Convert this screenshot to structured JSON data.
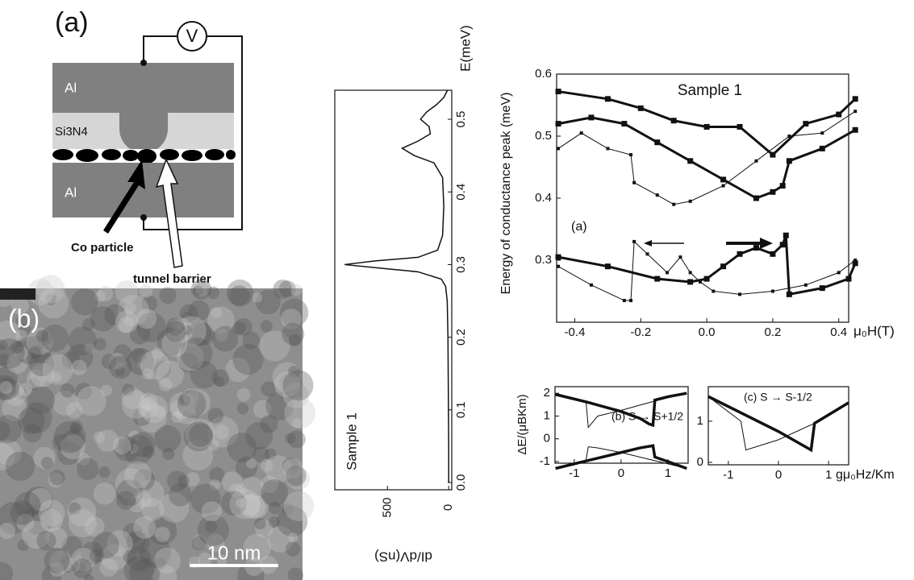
{
  "panel_a": {
    "label": "(a)",
    "voltmeter": "V",
    "top_layer": "Al",
    "insulator": "Si3N4",
    "bottom_layer": "Al",
    "particle_label": "Co particle",
    "barrier_label": "tunnel barrier"
  },
  "panel_b": {
    "label": "(b)",
    "scale_bar": "10 nm"
  },
  "chart_data": [
    {
      "type": "line",
      "orientation": "rotated",
      "title": "Sample 1",
      "xlabel": "E(meV)",
      "ylabel": "dI/dV(nS)",
      "x": [
        0,
        0.05,
        0.1,
        0.15,
        0.2,
        0.25,
        0.27,
        0.28,
        0.29,
        0.295,
        0.3,
        0.305,
        0.31,
        0.32,
        0.34,
        0.38,
        0.42,
        0.44,
        0.45,
        0.46,
        0.47,
        0.48,
        0.49,
        0.5,
        0.51,
        0.52,
        0.53,
        0.54
      ],
      "series": [
        {
          "name": "Sample 1",
          "color": "#111111",
          "line_width": 1.5,
          "values": [
            0,
            0,
            2,
            4,
            6,
            12,
            25,
            60,
            250,
            550,
            850,
            600,
            250,
            90,
            50,
            40,
            50,
            120,
            280,
            380,
            250,
            150,
            160,
            230,
            180,
            100,
            40,
            10
          ]
        }
      ],
      "xlim": [
        -0.01,
        0.54
      ],
      "xticks": [
        {
          "value": 0,
          "label": "0.0"
        },
        0.1,
        0.2,
        0.3,
        0.4,
        0.5
      ],
      "ylim": [
        930,
        -25
      ],
      "yticks": [
        500,
        0
      ]
    },
    {
      "type": "line",
      "title": "Sample 1",
      "annotation": "(a)",
      "xlabel": "μ₀H(T)",
      "ylabel": "Energy of conductance peak (meV)",
      "series": [
        {
          "color": "#111111",
          "line_width": 3,
          "marker": true,
          "x": [
            -0.45,
            -0.3,
            -0.2,
            -0.1,
            0,
            0.1,
            0.2,
            0.3,
            0.4,
            0.45
          ],
          "values": [
            0.572,
            0.56,
            0.545,
            0.525,
            0.515,
            0.515,
            0.47,
            0.52,
            0.535,
            0.56
          ]
        },
        {
          "color": "#111111",
          "line_width": 3,
          "marker": true,
          "x": [
            -0.45,
            -0.35,
            -0.25,
            -0.15,
            -0.05,
            0.05,
            0.15,
            0.2,
            0.23,
            0.25,
            0.35,
            0.45
          ],
          "values": [
            0.52,
            0.53,
            0.52,
            0.49,
            0.46,
            0.43,
            0.4,
            0.41,
            0.42,
            0.46,
            0.48,
            0.51
          ]
        },
        {
          "color": "#111111",
          "line_width": 1,
          "marker": true,
          "x": [
            -0.45,
            -0.38,
            -0.3,
            -0.23,
            -0.22,
            -0.15,
            -0.1,
            -0.05,
            0.05,
            0.15,
            0.25,
            0.35,
            0.45
          ],
          "values": [
            0.48,
            0.505,
            0.48,
            0.47,
            0.425,
            0.405,
            0.39,
            0.395,
            0.42,
            0.46,
            0.5,
            0.505,
            0.54
          ]
        },
        {
          "color": "#111111",
          "line_width": 3,
          "marker": true,
          "x": [
            -0.45,
            -0.3,
            -0.15,
            -0.05,
            0,
            0.05,
            0.1,
            0.15,
            0.2,
            0.23,
            0.24,
            0.25,
            0.35,
            0.43,
            0.45
          ],
          "values": [
            0.305,
            0.29,
            0.27,
            0.265,
            0.27,
            0.29,
            0.31,
            0.32,
            0.31,
            0.325,
            0.34,
            0.245,
            0.255,
            0.27,
            0.295
          ]
        },
        {
          "color": "#111111",
          "line_width": 1,
          "marker": true,
          "x": [
            -0.45,
            -0.35,
            -0.25,
            -0.23,
            -0.22,
            -0.18,
            -0.12,
            -0.08,
            -0.05,
            -0.02,
            0.02,
            0.1,
            0.2,
            0.3,
            0.4,
            0.45
          ],
          "values": [
            0.29,
            0.26,
            0.235,
            0.235,
            0.33,
            0.31,
            0.28,
            0.305,
            0.28,
            0.265,
            0.25,
            0.245,
            0.25,
            0.26,
            0.28,
            0.3
          ]
        }
      ],
      "xlim": [
        -0.455,
        0.43
      ],
      "xticks": [
        -0.4,
        -0.2,
        {
          "value": 0,
          "label": "0.0"
        },
        0.2,
        0.4
      ],
      "ylim": [
        0.2,
        0.6
      ],
      "yticks": [
        0.3,
        0.4,
        0.5,
        0.6
      ]
    },
    {
      "type": "line",
      "annotation": "(b) S → S+1/2",
      "ylabel": "ΔE/(μBKm)",
      "series": [
        {
          "color": "#111111",
          "line_width": 3.5,
          "x": [
            -1.4,
            -0.7,
            0,
            0.4,
            0.6,
            0.68,
            0.72,
            1.0,
            1.4
          ],
          "values": [
            1.95,
            1.6,
            1.2,
            0.9,
            0.65,
            0.6,
            1.7,
            1.85,
            2.0
          ]
        },
        {
          "color": "#111111",
          "line_width": 1,
          "x": [
            -1.4,
            -0.75,
            -0.7,
            -0.5,
            0,
            0.7,
            1.4
          ],
          "values": [
            1.95,
            1.65,
            0.5,
            1.0,
            1.25,
            1.65,
            2.0
          ]
        },
        {
          "color": "#111111",
          "line_width": 3.5,
          "x": [
            -1.4,
            -0.7,
            0,
            0.4,
            0.68,
            0.72,
            1.0,
            1.4
          ],
          "values": [
            -1.3,
            -0.95,
            -0.6,
            -0.4,
            -0.3,
            -0.8,
            -1.0,
            -1.3
          ]
        },
        {
          "color": "#111111",
          "line_width": 1,
          "x": [
            -1.4,
            -0.75,
            -0.7,
            -0.5,
            0,
            0.7,
            1.4
          ],
          "values": [
            -1.3,
            -0.95,
            -0.35,
            -0.4,
            -0.6,
            -0.95,
            -1.3
          ]
        }
      ],
      "xlim": [
        -1.41,
        1.43
      ],
      "xticks": [
        -1,
        0,
        1
      ],
      "ylim": [
        -1.07,
        2.29
      ],
      "yticks": [
        -1,
        0,
        1,
        2
      ]
    },
    {
      "type": "line",
      "annotation": "(c) S → S-1/2",
      "xlabel": "gμ₀Hz/Km",
      "series": [
        {
          "color": "#111111",
          "line_width": 3.5,
          "x": [
            -1.4,
            0,
            0.65,
            0.72,
            1.4
          ],
          "values": [
            1.6,
            0.75,
            0.3,
            0.95,
            1.45
          ]
        },
        {
          "color": "#111111",
          "line_width": 1,
          "x": [
            -1.4,
            -0.75,
            -0.65,
            0,
            0.72,
            1.4
          ],
          "values": [
            1.6,
            1.0,
            0.3,
            0.55,
            0.95,
            1.45
          ]
        }
      ],
      "xlim": [
        -1.4,
        1.4
      ],
      "xticks": [
        -1,
        0,
        1
      ],
      "ylim": [
        -0.06,
        1.84
      ],
      "yticks": [
        0,
        1
      ]
    }
  ]
}
